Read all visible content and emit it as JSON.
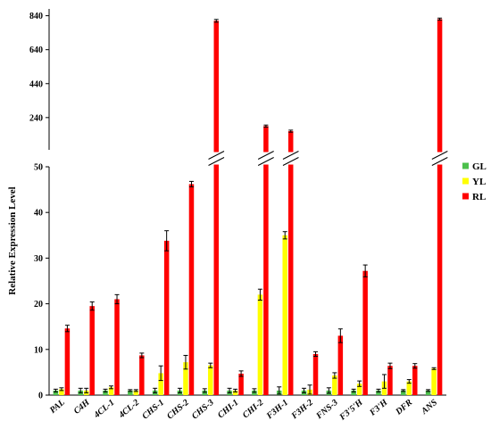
{
  "chart_data": {
    "type": "bar",
    "ylabel": "Relative Expression Level",
    "ylim_lower": [
      0,
      50
    ],
    "ylim_upper": [
      50,
      880
    ],
    "yticks_lower": [
      "0",
      "10",
      "20",
      "30",
      "40",
      "50"
    ],
    "yticks_upper": [
      "240",
      "440",
      "640",
      "840"
    ],
    "categories": [
      "PAL",
      "C4H",
      "4CL-1",
      "4CL-2",
      "CHS-1",
      "CHS-2",
      "CHS-3",
      "CHI-1",
      "CHI-2",
      "F3H-1",
      "F3H-2",
      "FNS-3",
      "F3'5'H",
      "F3'H",
      "DFR",
      "ANS"
    ],
    "legend_position": "right",
    "series": [
      {
        "name": "GL",
        "color": "#4CC04C",
        "values": [
          1,
          1,
          1,
          1,
          1,
          1,
          1,
          1,
          1,
          1,
          1,
          1,
          1,
          1,
          1,
          1
        ],
        "errors": [
          0.3,
          0.5,
          0.3,
          0.2,
          0.5,
          0.5,
          0.4,
          0.5,
          0.4,
          0.8,
          0.5,
          0.6,
          0.3,
          0.3,
          0.2,
          0.2
        ]
      },
      {
        "name": "YL",
        "color": "#FFFF00",
        "values": [
          1.3,
          1.0,
          1.7,
          1.0,
          4.8,
          7.2,
          6.5,
          1.0,
          22.0,
          35.0,
          1.2,
          4.3,
          2.5,
          3.0,
          3.0,
          5.8
        ],
        "errors": [
          0.3,
          0.5,
          0.3,
          0.2,
          1.6,
          1.5,
          0.5,
          0.3,
          1.2,
          0.8,
          1.0,
          0.6,
          0.6,
          1.5,
          0.4,
          0.2
        ]
      },
      {
        "name": "RL",
        "color": "#FF0000",
        "values": [
          14.6,
          19.5,
          21.0,
          8.7,
          33.8,
          46.2,
          810,
          4.7,
          190,
          160,
          9.0,
          13.0,
          27.2,
          6.4,
          6.4,
          820
        ],
        "errors": [
          0.7,
          0.9,
          1.0,
          0.5,
          2.2,
          0.6,
          8.0,
          0.6,
          6.0,
          6.0,
          0.5,
          1.5,
          1.3,
          0.6,
          0.5,
          6.0
        ]
      }
    ]
  }
}
